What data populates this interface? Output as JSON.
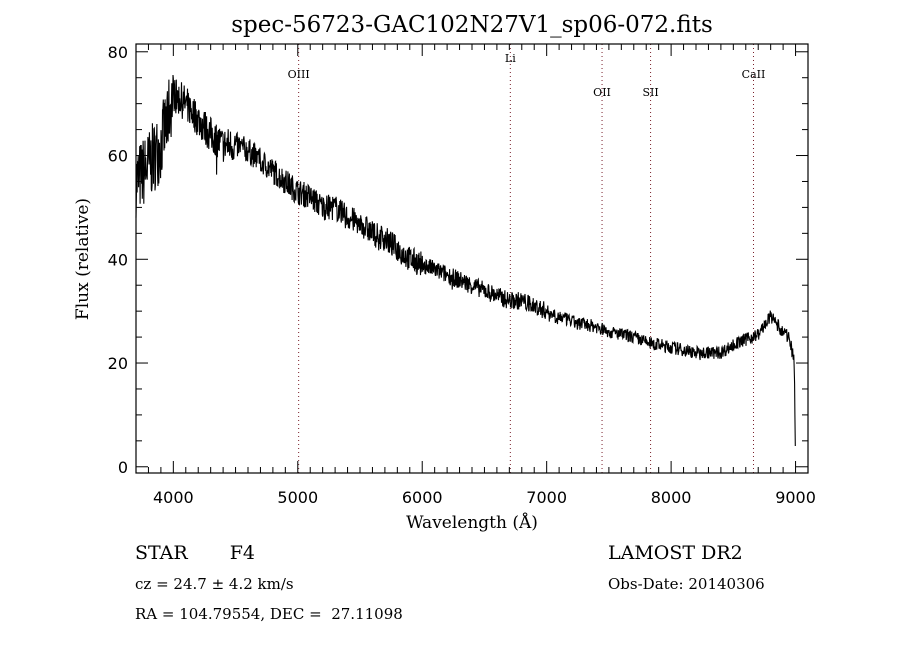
{
  "chart_data": {
    "type": "line",
    "title": "spec-56723-GAC102N27V1_sp06-072.fits",
    "xlabel": "Wavelength (Å)",
    "ylabel": "Flux (relative)",
    "xlim": [
      3700,
      9100
    ],
    "ylim": [
      -1.2,
      81.5
    ],
    "xticks": [
      4000,
      5000,
      6000,
      7000,
      8000,
      9000
    ],
    "yticks": [
      0,
      20,
      40,
      60,
      80
    ],
    "grid": false,
    "series": [
      {
        "name": "flux",
        "x": [
          3700,
          3800,
          3900,
          4000,
          4100,
          4200,
          4300,
          4400,
          4500,
          4600,
          4700,
          4800,
          4900,
          5000,
          5100,
          5200,
          5300,
          5400,
          5500,
          5600,
          5700,
          5800,
          5900,
          6000,
          6100,
          6200,
          6300,
          6400,
          6500,
          6600,
          6700,
          6800,
          6900,
          7000,
          7100,
          7200,
          7300,
          7400,
          7500,
          7600,
          7700,
          7800,
          7900,
          8000,
          8100,
          8200,
          8300,
          8400,
          8500,
          8600,
          8700,
          8800,
          8900,
          8950,
          8990,
          9000
        ],
        "y": [
          55,
          58,
          62,
          72,
          70,
          67,
          64,
          62,
          62,
          61,
          59,
          57,
          55,
          53,
          52,
          50,
          50,
          48,
          47,
          45,
          44,
          42,
          40,
          39,
          38,
          37,
          36,
          35,
          34,
          33,
          32,
          32,
          31,
          30,
          29,
          28,
          27.5,
          27,
          26,
          25.5,
          25,
          24,
          23.5,
          23,
          22.5,
          22,
          22,
          22,
          23.5,
          24.5,
          25.5,
          29,
          26,
          25,
          20,
          0
        ]
      }
    ],
    "annotations": [
      {
        "label": "OIII",
        "x": 5007
      },
      {
        "label": "Li",
        "x": 6708
      },
      {
        "label": "OII",
        "x": 7445
      },
      {
        "label": "SII",
        "x": 7835
      },
      {
        "label": "CaII",
        "x": 8662
      }
    ]
  },
  "info": {
    "object_class": "STAR",
    "subclass": "F4",
    "redshift": "cz = 24.7 ± 4.2 km/s",
    "coords": "RA = 104.79554, DEC =  27.11098",
    "survey": "LAMOST DR2",
    "obs_date": "Obs-Date: 20140306"
  },
  "colors": {
    "line": "#000000",
    "marker": "#7a1f2b"
  }
}
